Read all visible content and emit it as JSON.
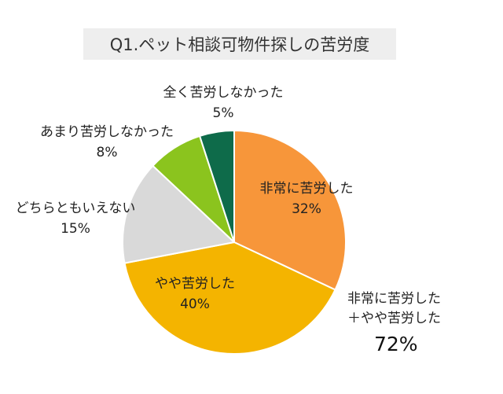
{
  "chart_data": {
    "type": "pie",
    "title": "Q1.ペット相談可物件探しの苦労度",
    "slices": [
      {
        "label": "非常に苦労した",
        "value": 32,
        "value_label": "32%",
        "color": "#F7963A"
      },
      {
        "label": "やや苦労した",
        "value": 40,
        "value_label": "40%",
        "color": "#F4B400"
      },
      {
        "label": "どちらともいえない",
        "value": 15,
        "value_label": "15%",
        "color": "#D9D9D9"
      },
      {
        "label": "あまり苦労しなかった",
        "value": 8,
        "value_label": "8%",
        "color": "#8BC41E"
      },
      {
        "label": "全く苦労しなかった",
        "value": 5,
        "value_label": "5%",
        "color": "#0E6B4A"
      }
    ],
    "annotation": {
      "line1": "非常に苦労した",
      "line2": "＋やや苦労した",
      "value": "72%"
    }
  }
}
